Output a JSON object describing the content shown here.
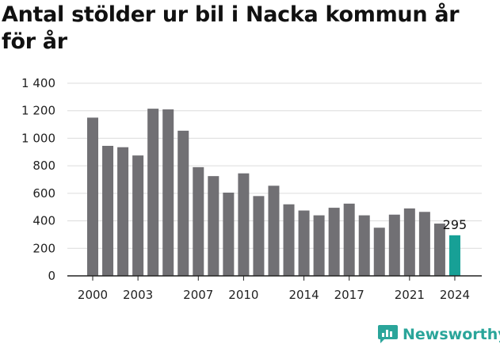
{
  "title": "Antal stölder ur bil i Nacka kommun år för år",
  "brand": {
    "name": "Newsworthy",
    "icon": "newsworthy-logo-icon",
    "color": "#2aa59a"
  },
  "colors": {
    "bar": "#717074",
    "highlight": "#17a096",
    "grid": "#dcdcdc",
    "axis": "#222222"
  },
  "chart_data": {
    "type": "bar",
    "title": "Antal stölder ur bil i Nacka kommun år för år",
    "xlabel": "",
    "ylabel": "",
    "categories": [
      "2000",
      "2001",
      "2002",
      "2003",
      "2004",
      "2005",
      "2006",
      "2007",
      "2008",
      "2009",
      "2010",
      "2011",
      "2012",
      "2013",
      "2014",
      "2015",
      "2016",
      "2017",
      "2018",
      "2019",
      "2020",
      "2021",
      "2022",
      "2023",
      "2024"
    ],
    "values": [
      1150,
      945,
      935,
      875,
      1215,
      1210,
      1055,
      790,
      725,
      605,
      745,
      580,
      655,
      520,
      475,
      440,
      495,
      525,
      440,
      350,
      445,
      490,
      465,
      380,
      295
    ],
    "x_tick_labels": [
      "2000",
      "2003",
      "2007",
      "2010",
      "2014",
      "2017",
      "2021",
      "2024"
    ],
    "y_ticks": [
      0,
      200,
      400,
      600,
      800,
      1000,
      1200,
      1400
    ],
    "y_tick_labels": [
      "0",
      "200",
      "400",
      "600",
      "800",
      "1 000",
      "1 200",
      "1 400"
    ],
    "ylim": [
      0,
      1400
    ],
    "grid": true,
    "highlight_index": 24,
    "annotations": [
      {
        "category": "2024",
        "text": "295"
      }
    ]
  }
}
